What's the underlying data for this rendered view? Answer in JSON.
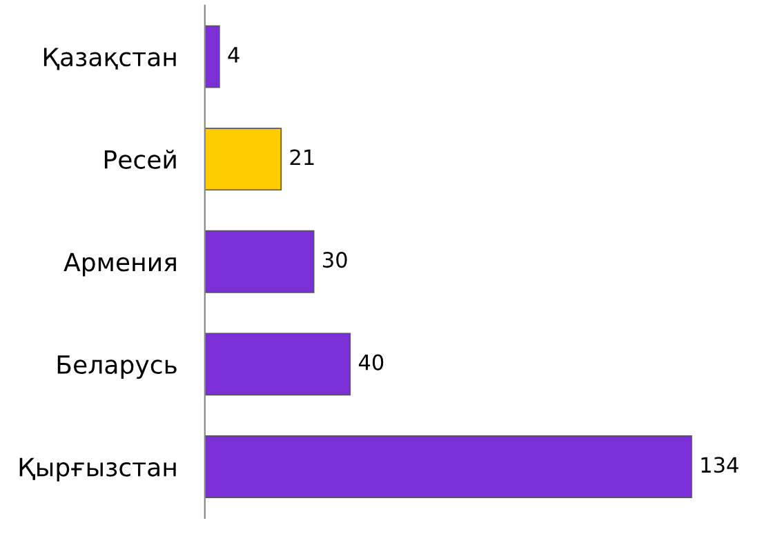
{
  "chart_data": {
    "type": "bar",
    "orientation": "horizontal",
    "categories": [
      "Қазақстан",
      "Ресей",
      "Армения",
      "Беларусь",
      "Қырғызстан"
    ],
    "values": [
      4,
      21,
      30,
      40,
      134
    ],
    "colors": [
      "#7b2fd6",
      "#ffcc00",
      "#7b2fd6",
      "#7b2fd6",
      "#7b2fd6"
    ],
    "data_labels": true,
    "grid": false,
    "legend": false
  }
}
